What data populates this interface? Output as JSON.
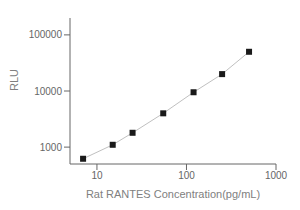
{
  "chart_data": {
    "type": "line",
    "x": [
      7,
      15,
      25,
      55,
      120,
      250,
      500
    ],
    "values": [
      620,
      1100,
      1800,
      4000,
      9500,
      20000,
      50000
    ],
    "xlabel": "Rat RANTES Concentration(pg/mL)",
    "ylabel": "RLU",
    "xlim": [
      5,
      1000
    ],
    "ylim": [
      500,
      200000
    ],
    "xticks": [
      10,
      100,
      1000
    ],
    "yticks": [
      1000,
      10000,
      100000
    ],
    "log": true,
    "color": "#c0c0c0",
    "colors": [
      "#1a1a1a",
      "#1a1a1a",
      "#1a1a1a",
      "#1a1a1a",
      "#1a1a1a",
      "#1a1a1a",
      "#1a1a1a"
    ],
    "marker": "square",
    "grid": false
  }
}
